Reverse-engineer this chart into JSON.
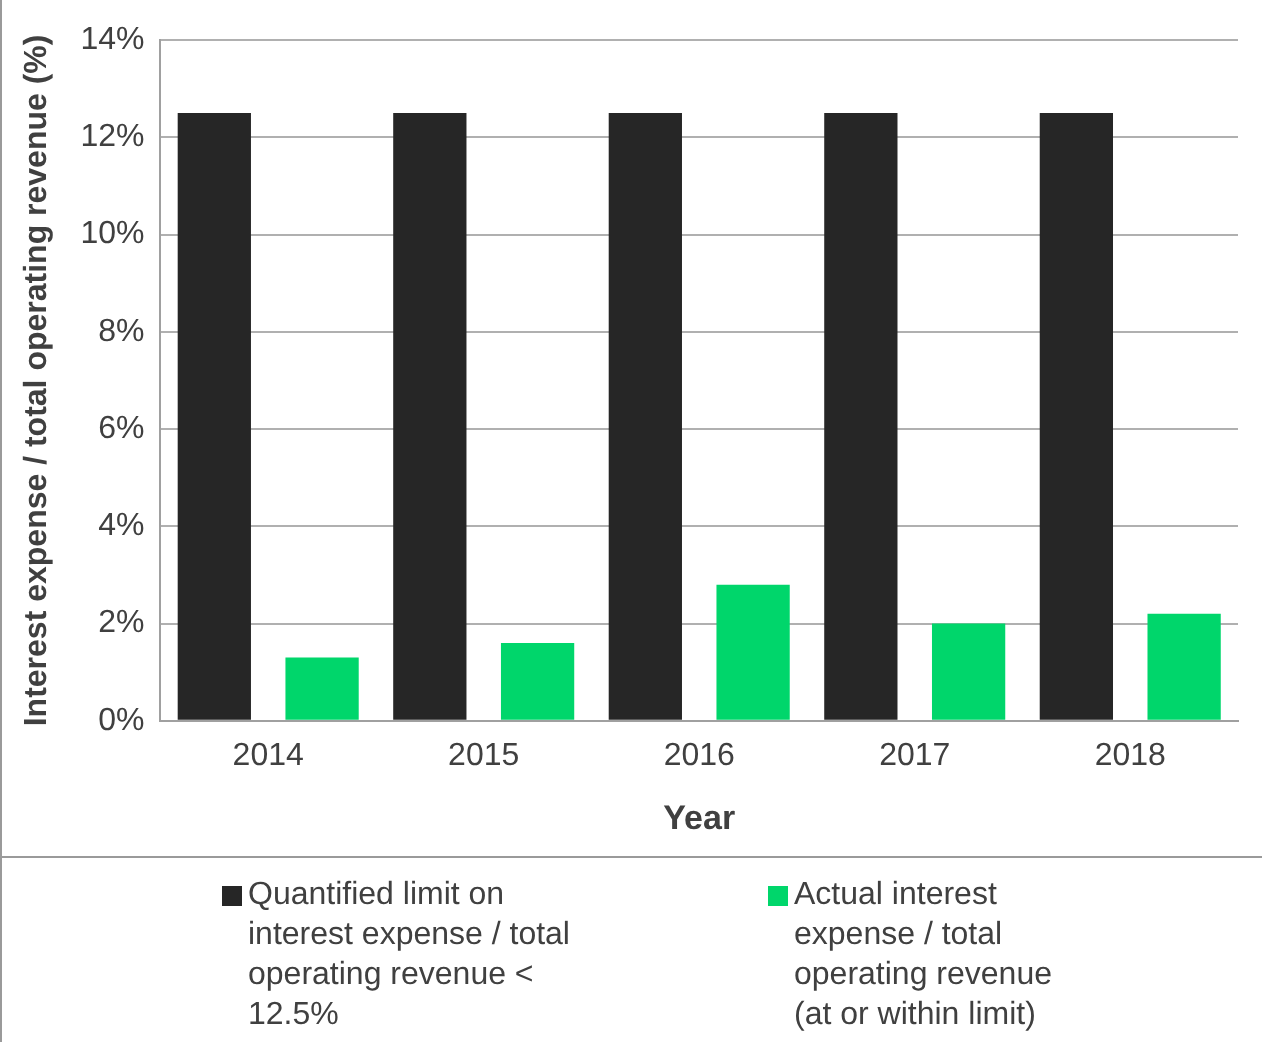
{
  "chart_data": {
    "type": "bar",
    "xlabel": "Year",
    "ylabel": "Interest expense / total operating revenue (%)",
    "categories": [
      "2014",
      "2015",
      "2016",
      "2017",
      "2018"
    ],
    "series": [
      {
        "name": "Quantified limit on interest expense / total operating revenue < 12.5%",
        "color": "#262626",
        "values": [
          12.5,
          12.5,
          12.5,
          12.5,
          12.5
        ]
      },
      {
        "name": "Actual interest expense / total operating revenue (at or within limit)",
        "color": "#00d66b",
        "values": [
          1.3,
          1.6,
          2.8,
          2.0,
          2.2
        ]
      }
    ],
    "ylim": [
      0,
      14
    ],
    "yticks": [
      {
        "value": 0,
        "label": "0%"
      },
      {
        "value": 2,
        "label": "2%"
      },
      {
        "value": 4,
        "label": "4%"
      },
      {
        "value": 6,
        "label": "6%"
      },
      {
        "value": 8,
        "label": "8%"
      },
      {
        "value": 10,
        "label": "10%"
      },
      {
        "value": 12,
        "label": "12%"
      },
      {
        "value": 14,
        "label": "14%"
      }
    ],
    "grid": "y",
    "legend": "bottom"
  }
}
